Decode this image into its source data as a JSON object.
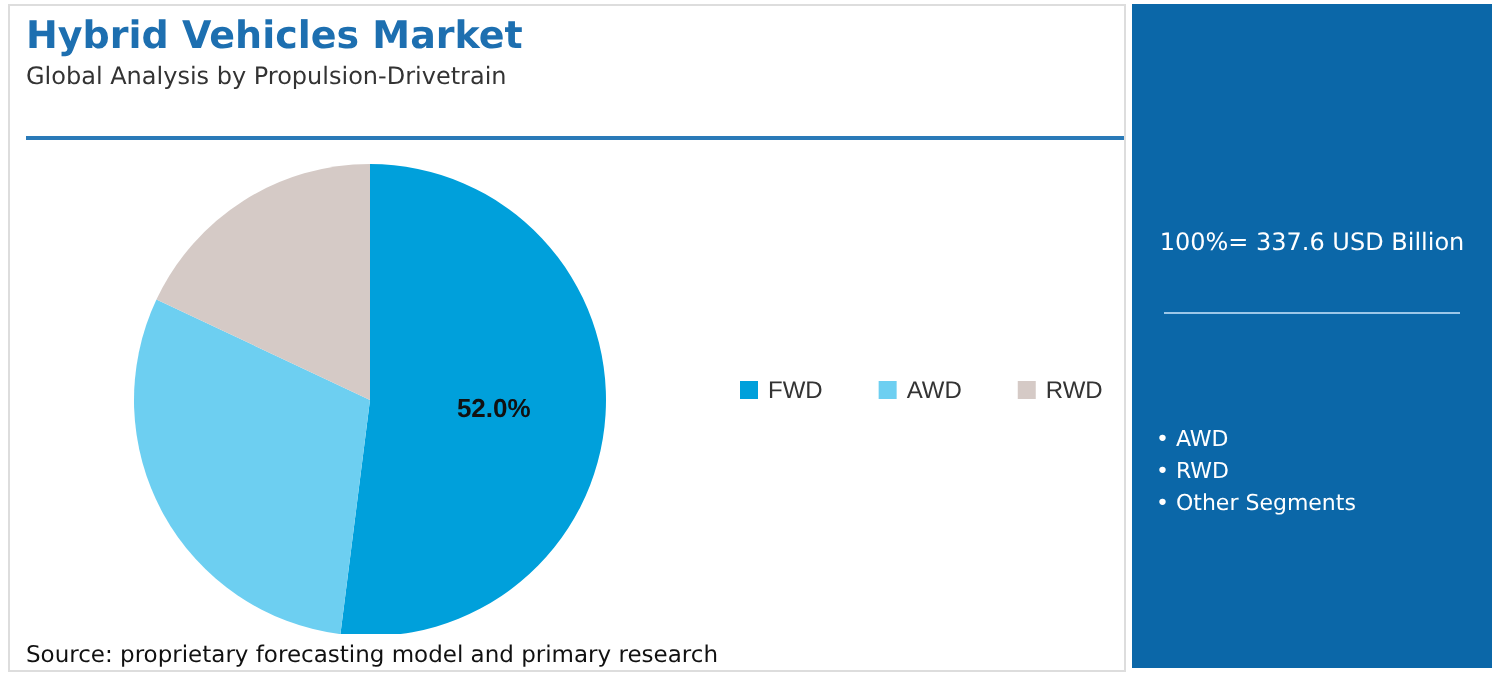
{
  "chart_data": {
    "type": "pie",
    "title": "Hybrid Vehicles Market",
    "subtitle": "Global Analysis by Propulsion-Drivetrain",
    "categories": [
      "FWD",
      "AWD",
      "RWD"
    ],
    "values": [
      52.0,
      30.0,
      18.0
    ],
    "colors": [
      "#00a0db",
      "#6dcff1",
      "#d5cac6"
    ],
    "value_labels": [
      "52.0%",
      null,
      null
    ],
    "legend": "right",
    "annotations": [
      "Source: proprietary forecasting model and primary research",
      "100%= 337.6 USD Billion",
      "• AWD",
      "• RWD",
      "• Other Segments"
    ]
  }
}
